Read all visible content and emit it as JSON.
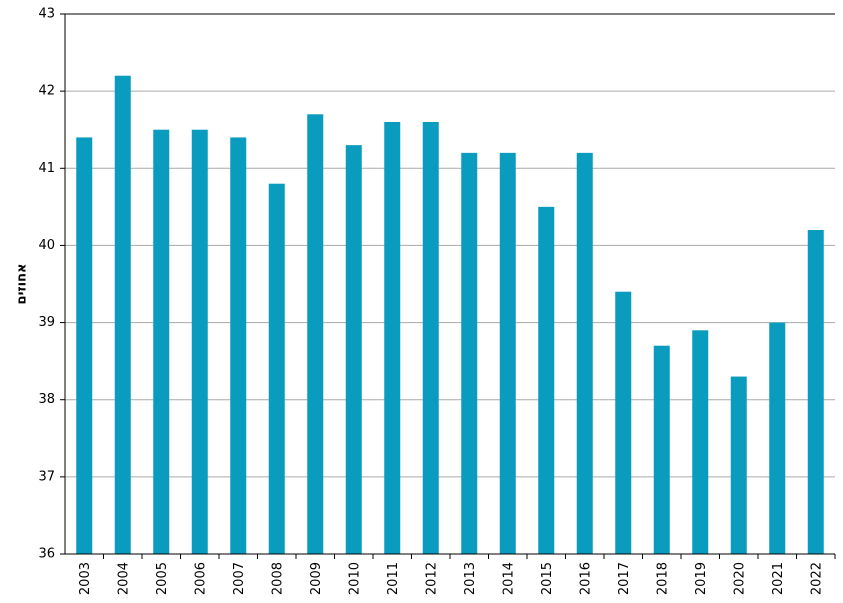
{
  "chart_data": {
    "type": "bar",
    "y_label": "אחוזים",
    "categories": [
      "2003",
      "2004",
      "2005",
      "2006",
      "2007",
      "2008",
      "2009",
      "2010",
      "2011",
      "2012",
      "2013",
      "2014",
      "2015",
      "2016",
      "2017",
      "2018",
      "2019",
      "2020",
      "2021",
      "2022"
    ],
    "values": [
      41.4,
      42.2,
      41.5,
      41.5,
      41.4,
      40.8,
      41.7,
      41.3,
      41.6,
      41.6,
      41.2,
      41.2,
      40.5,
      41.2,
      39.4,
      38.7,
      38.9,
      38.3,
      39.0,
      40.2
    ],
    "color": "#0a9cbf",
    "ylim": [
      36,
      43
    ],
    "yticks": [
      36,
      37,
      38,
      39,
      40,
      41,
      42,
      43
    ],
    "grid": true
  }
}
